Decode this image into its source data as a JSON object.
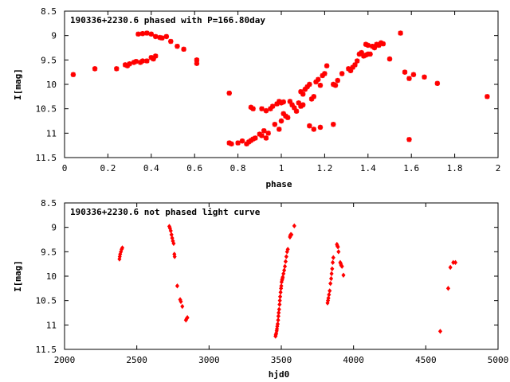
{
  "colors": {
    "points": "#ff0000",
    "axes": "#000000",
    "background": "#ffffff"
  },
  "chart_data": [
    {
      "type": "scatter",
      "title": "190336+2230.6 phased with P=166.80day",
      "xlabel": "phase",
      "ylabel": "I[mag]",
      "xlim": [
        0,
        2
      ],
      "ylim": [
        11.5,
        8.5
      ],
      "y_inverted": true,
      "grid": false,
      "legend": "none",
      "marker": "star",
      "xticks": [
        "0",
        "0.2",
        "0.4",
        "0.6",
        "0.8",
        "1",
        "1.2",
        "1.4",
        "1.6",
        "1.8",
        "2"
      ],
      "yticks": [
        "8.5",
        "9",
        "9.5",
        "10",
        "10.5",
        "11",
        "11.5"
      ],
      "series": [
        {
          "points": [
            [
              0.04,
              9.8
            ],
            [
              0.14,
              9.68
            ],
            [
              0.24,
              9.68
            ],
            [
              0.28,
              9.6
            ],
            [
              0.29,
              9.62
            ],
            [
              0.3,
              9.58
            ],
            [
              0.32,
              9.55
            ],
            [
              0.33,
              9.53
            ],
            [
              0.35,
              9.55
            ],
            [
              0.36,
              9.52
            ],
            [
              0.38,
              9.52
            ],
            [
              0.34,
              8.97
            ],
            [
              0.36,
              8.96
            ],
            [
              0.38,
              8.95
            ],
            [
              0.4,
              8.97
            ],
            [
              0.42,
              9.02
            ],
            [
              0.44,
              9.04
            ],
            [
              0.45,
              9.05
            ],
            [
              0.47,
              9.02
            ],
            [
              0.49,
              9.12
            ],
            [
              0.52,
              9.22
            ],
            [
              0.55,
              9.28
            ],
            [
              0.4,
              9.45
            ],
            [
              0.41,
              9.48
            ],
            [
              0.42,
              9.42
            ],
            [
              0.61,
              9.5
            ],
            [
              0.61,
              9.57
            ],
            [
              0.76,
              10.18
            ],
            [
              0.76,
              11.2
            ],
            [
              0.77,
              11.22
            ],
            [
              0.8,
              11.2
            ],
            [
              0.82,
              11.16
            ],
            [
              0.84,
              11.22
            ],
            [
              0.85,
              11.18
            ],
            [
              0.86,
              11.15
            ],
            [
              0.87,
              11.12
            ],
            [
              0.88,
              11.1
            ],
            [
              0.86,
              10.47
            ],
            [
              0.87,
              10.5
            ],
            [
              0.9,
              11.02
            ],
            [
              0.91,
              11.05
            ],
            [
              0.92,
              10.95
            ],
            [
              0.93,
              11.1
            ],
            [
              0.94,
              11.0
            ],
            [
              0.91,
              10.5
            ],
            [
              0.93,
              10.54
            ],
            [
              0.95,
              10.5
            ],
            [
              0.96,
              10.45
            ],
            [
              0.97,
              10.82
            ],
            [
              0.98,
              10.4
            ],
            [
              0.99,
              10.35
            ],
            [
              1.0,
              10.38
            ],
            [
              1.01,
              10.36
            ],
            [
              1.0,
              10.75
            ],
            [
              1.01,
              10.6
            ],
            [
              1.02,
              10.65
            ],
            [
              1.03,
              10.68
            ],
            [
              0.99,
              10.92
            ],
            [
              1.04,
              10.35
            ],
            [
              1.05,
              10.42
            ],
            [
              1.06,
              10.48
            ],
            [
              1.07,
              10.55
            ],
            [
              1.08,
              10.38
            ],
            [
              1.09,
              10.45
            ],
            [
              1.1,
              10.42
            ],
            [
              1.09,
              10.15
            ],
            [
              1.1,
              10.2
            ],
            [
              1.11,
              10.1
            ],
            [
              1.12,
              10.05
            ],
            [
              1.13,
              10.0
            ],
            [
              1.14,
              10.3
            ],
            [
              1.15,
              10.25
            ],
            [
              1.16,
              9.95
            ],
            [
              1.17,
              9.9
            ],
            [
              1.18,
              10.02
            ],
            [
              1.19,
              9.82
            ],
            [
              1.2,
              9.78
            ],
            [
              1.21,
              9.62
            ],
            [
              1.13,
              10.85
            ],
            [
              1.15,
              10.92
            ],
            [
              1.18,
              10.88
            ],
            [
              1.24,
              10.0
            ],
            [
              1.25,
              10.02
            ],
            [
              1.26,
              9.92
            ],
            [
              1.28,
              9.78
            ],
            [
              1.24,
              10.82
            ],
            [
              1.31,
              9.68
            ],
            [
              1.32,
              9.72
            ],
            [
              1.33,
              9.65
            ],
            [
              1.34,
              9.6
            ],
            [
              1.35,
              9.52
            ],
            [
              1.36,
              9.38
            ],
            [
              1.37,
              9.35
            ],
            [
              1.38,
              9.42
            ],
            [
              1.39,
              9.4
            ],
            [
              1.4,
              9.38
            ],
            [
              1.41,
              9.38
            ],
            [
              1.39,
              9.18
            ],
            [
              1.4,
              9.2
            ],
            [
              1.42,
              9.22
            ],
            [
              1.43,
              9.25
            ],
            [
              1.44,
              9.18
            ],
            [
              1.45,
              9.2
            ],
            [
              1.46,
              9.15
            ],
            [
              1.47,
              9.17
            ],
            [
              1.5,
              9.48
            ],
            [
              1.55,
              8.95
            ],
            [
              1.57,
              9.75
            ],
            [
              1.59,
              9.88
            ],
            [
              1.61,
              9.8
            ],
            [
              1.66,
              9.85
            ],
            [
              1.72,
              9.98
            ],
            [
              1.59,
              11.13
            ],
            [
              1.95,
              10.25
            ]
          ]
        }
      ]
    },
    {
      "type": "scatter",
      "title": "190336+2230.6 not phased light curve",
      "xlabel": "hjd0",
      "ylabel": "I[mag]",
      "xlim": [
        2000,
        5000
      ],
      "ylim": [
        11.5,
        8.5
      ],
      "y_inverted": true,
      "grid": false,
      "legend": "none",
      "marker": "diamond",
      "xticks": [
        "2000",
        "2500",
        "3000",
        "3500",
        "4000",
        "4500",
        "5000"
      ],
      "yticks": [
        "8.5",
        "9",
        "9.5",
        "10",
        "10.5",
        "11",
        "11.5"
      ],
      "series": [
        {
          "points": [
            [
              2380,
              9.65
            ],
            [
              2382,
              9.6
            ],
            [
              2385,
              9.55
            ],
            [
              2390,
              9.5
            ],
            [
              2395,
              9.45
            ],
            [
              2400,
              9.42
            ],
            [
              2725,
              8.98
            ],
            [
              2730,
              9.02
            ],
            [
              2735,
              9.07
            ],
            [
              2740,
              9.15
            ],
            [
              2745,
              9.22
            ],
            [
              2750,
              9.28
            ],
            [
              2755,
              9.33
            ],
            [
              2760,
              9.55
            ],
            [
              2762,
              9.6
            ],
            [
              2780,
              10.2
            ],
            [
              2800,
              10.48
            ],
            [
              2805,
              10.52
            ],
            [
              2815,
              10.62
            ],
            [
              2840,
              10.9
            ],
            [
              2845,
              10.87
            ],
            [
              2850,
              10.85
            ],
            [
              3460,
              11.23
            ],
            [
              3462,
              11.2
            ],
            [
              3465,
              11.17
            ],
            [
              3468,
              11.12
            ],
            [
              3470,
              11.08
            ],
            [
              3472,
              11.03
            ],
            [
              3475,
              10.98
            ],
            [
              3478,
              10.9
            ],
            [
              3480,
              10.82
            ],
            [
              3482,
              10.75
            ],
            [
              3485,
              10.68
            ],
            [
              3488,
              10.58
            ],
            [
              3490,
              10.5
            ],
            [
              3492,
              10.42
            ],
            [
              3495,
              10.33
            ],
            [
              3498,
              10.25
            ],
            [
              3500,
              10.2
            ],
            [
              3502,
              10.12
            ],
            [
              3505,
              10.08
            ],
            [
              3508,
              10.05
            ],
            [
              3510,
              10.02
            ],
            [
              3515,
              9.95
            ],
            [
              3520,
              9.88
            ],
            [
              3525,
              9.8
            ],
            [
              3530,
              9.7
            ],
            [
              3535,
              9.6
            ],
            [
              3540,
              9.5
            ],
            [
              3545,
              9.45
            ],
            [
              3560,
              9.2
            ],
            [
              3562,
              9.17
            ],
            [
              3565,
              9.15
            ],
            [
              3570,
              9.15
            ],
            [
              3590,
              8.97
            ],
            [
              3820,
              10.55
            ],
            [
              3823,
              10.5
            ],
            [
              3826,
              10.45
            ],
            [
              3830,
              10.38
            ],
            [
              3835,
              10.3
            ],
            [
              3840,
              10.15
            ],
            [
              3845,
              10.05
            ],
            [
              3848,
              9.95
            ],
            [
              3852,
              9.85
            ],
            [
              3856,
              9.72
            ],
            [
              3860,
              9.62
            ],
            [
              3885,
              9.35
            ],
            [
              3888,
              9.38
            ],
            [
              3892,
              9.4
            ],
            [
              3896,
              9.5
            ],
            [
              3908,
              9.72
            ],
            [
              3912,
              9.75
            ],
            [
              3915,
              9.78
            ],
            [
              3920,
              9.8
            ],
            [
              3930,
              9.98
            ],
            [
              4600,
              11.13
            ],
            [
              4655,
              10.25
            ],
            [
              4670,
              9.82
            ],
            [
              4690,
              9.72
            ],
            [
              4705,
              9.72
            ]
          ]
        }
      ]
    }
  ]
}
